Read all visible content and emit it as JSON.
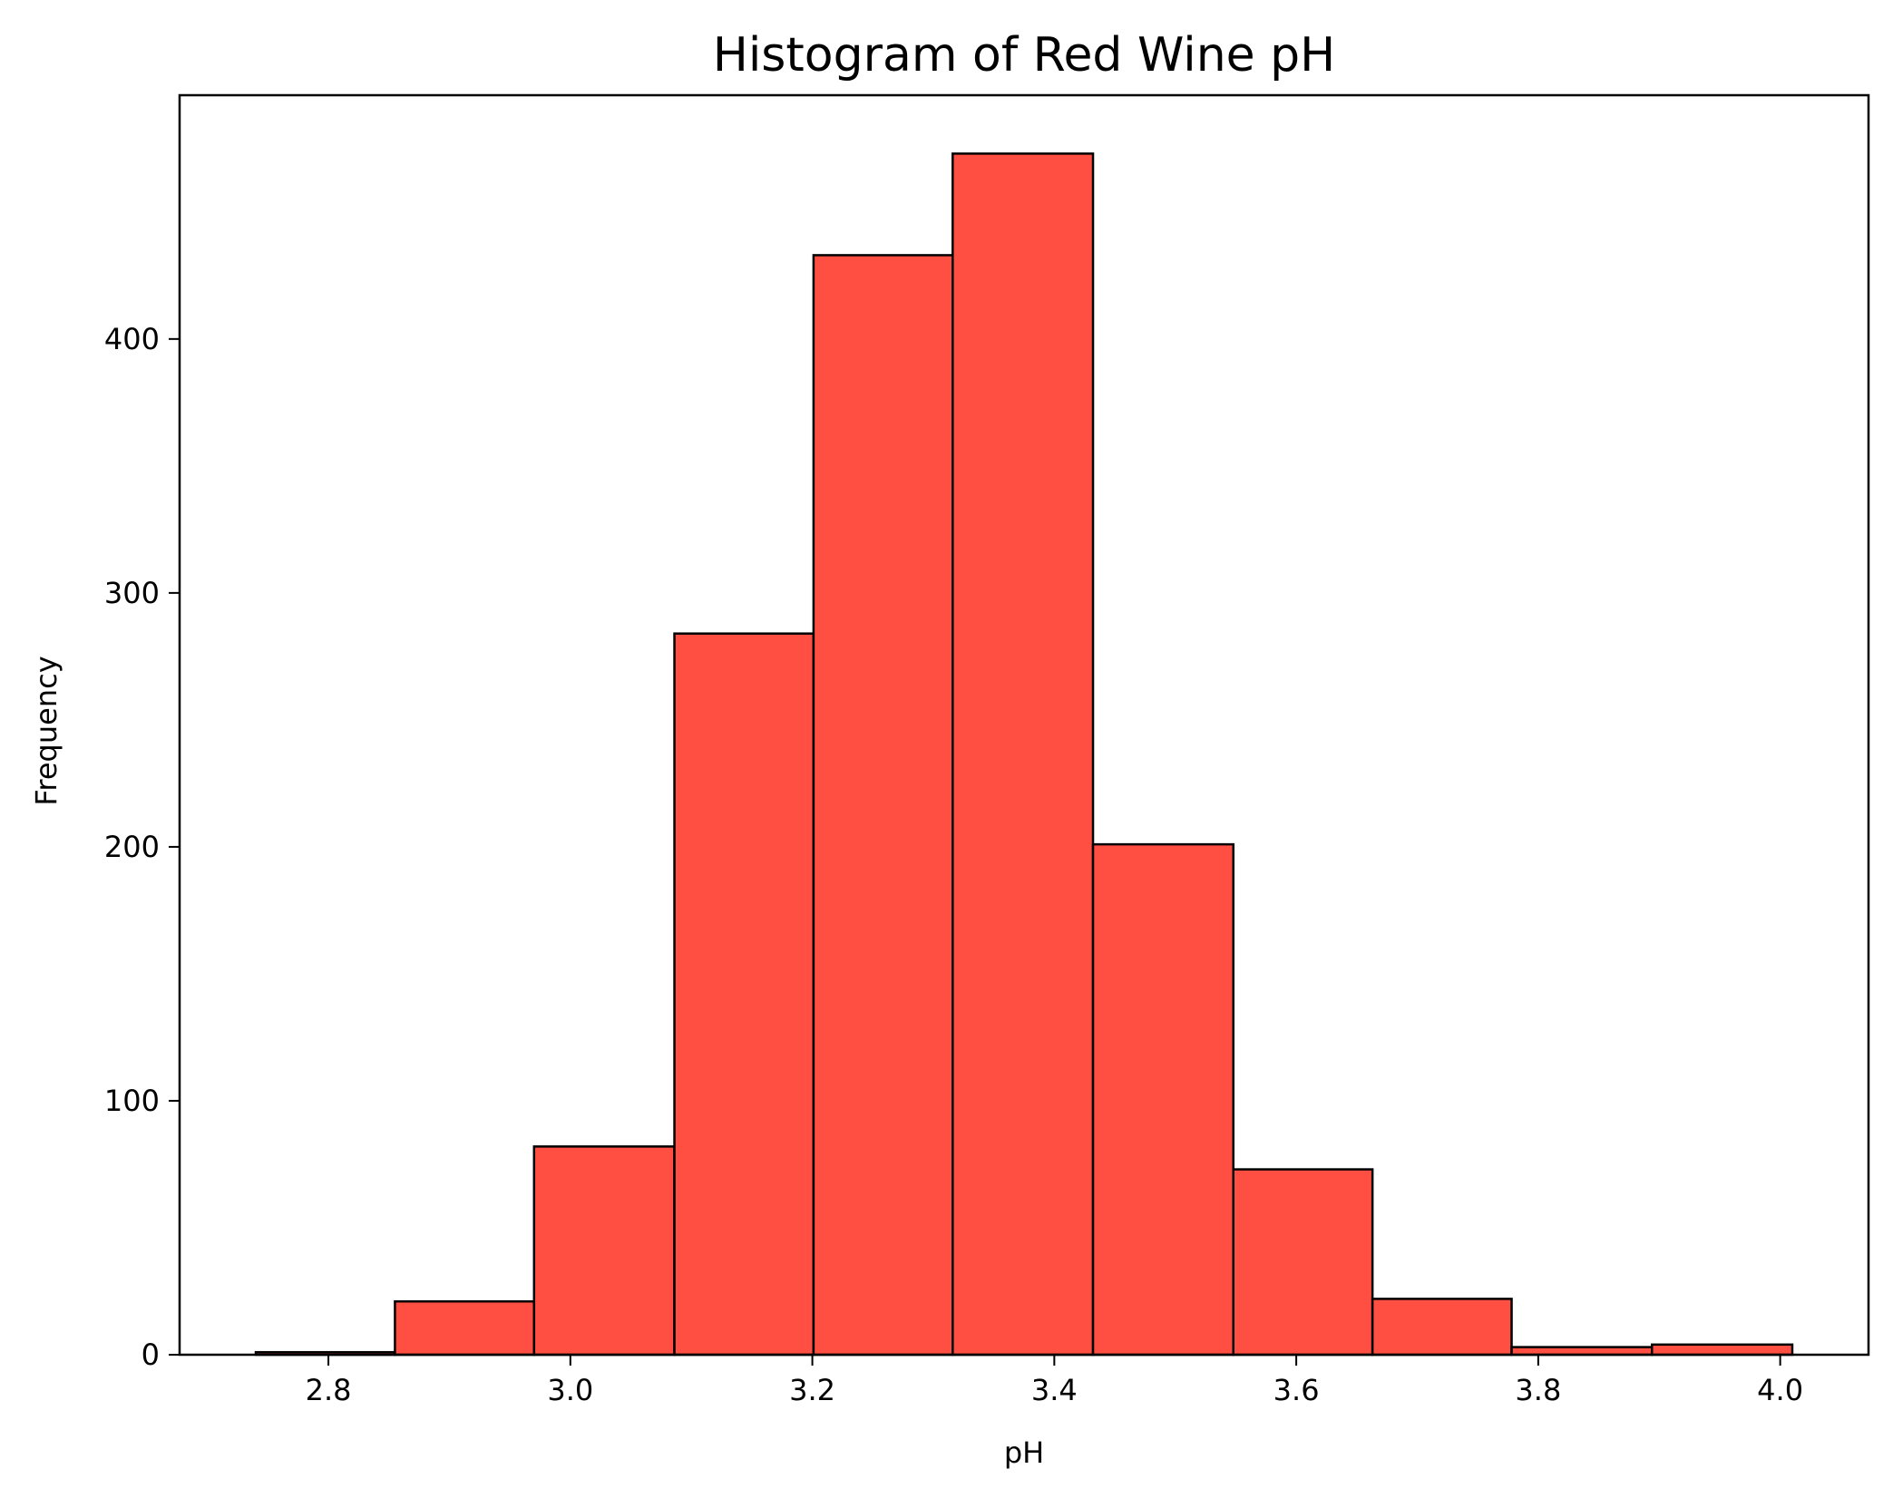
{
  "chart_data": {
    "type": "bar",
    "title": "Histogram of Red Wine pH",
    "xlabel": "pH",
    "ylabel": "Frequency",
    "bin_edges": [
      2.74,
      2.855,
      2.97,
      3.086,
      3.201,
      3.316,
      3.432,
      3.548,
      3.663,
      3.778,
      3.894,
      4.01
    ],
    "values": [
      1,
      21,
      82,
      284,
      433,
      473,
      201,
      73,
      22,
      3,
      4
    ],
    "xlim": [
      2.677,
      4.073
    ],
    "ylim": [
      0,
      496
    ],
    "xticks": [
      2.8,
      3.0,
      3.2,
      3.4,
      3.6,
      3.8,
      4.0
    ],
    "xtick_labels": [
      "2.8",
      "3.0",
      "3.2",
      "3.4",
      "3.6",
      "3.8",
      "4.0"
    ],
    "yticks": [
      0,
      100,
      200,
      300,
      400
    ],
    "ytick_labels": [
      "0",
      "100",
      "200",
      "300",
      "400"
    ],
    "grid": false,
    "bar_color": "#ff4f42",
    "edge_color": "#000000"
  }
}
